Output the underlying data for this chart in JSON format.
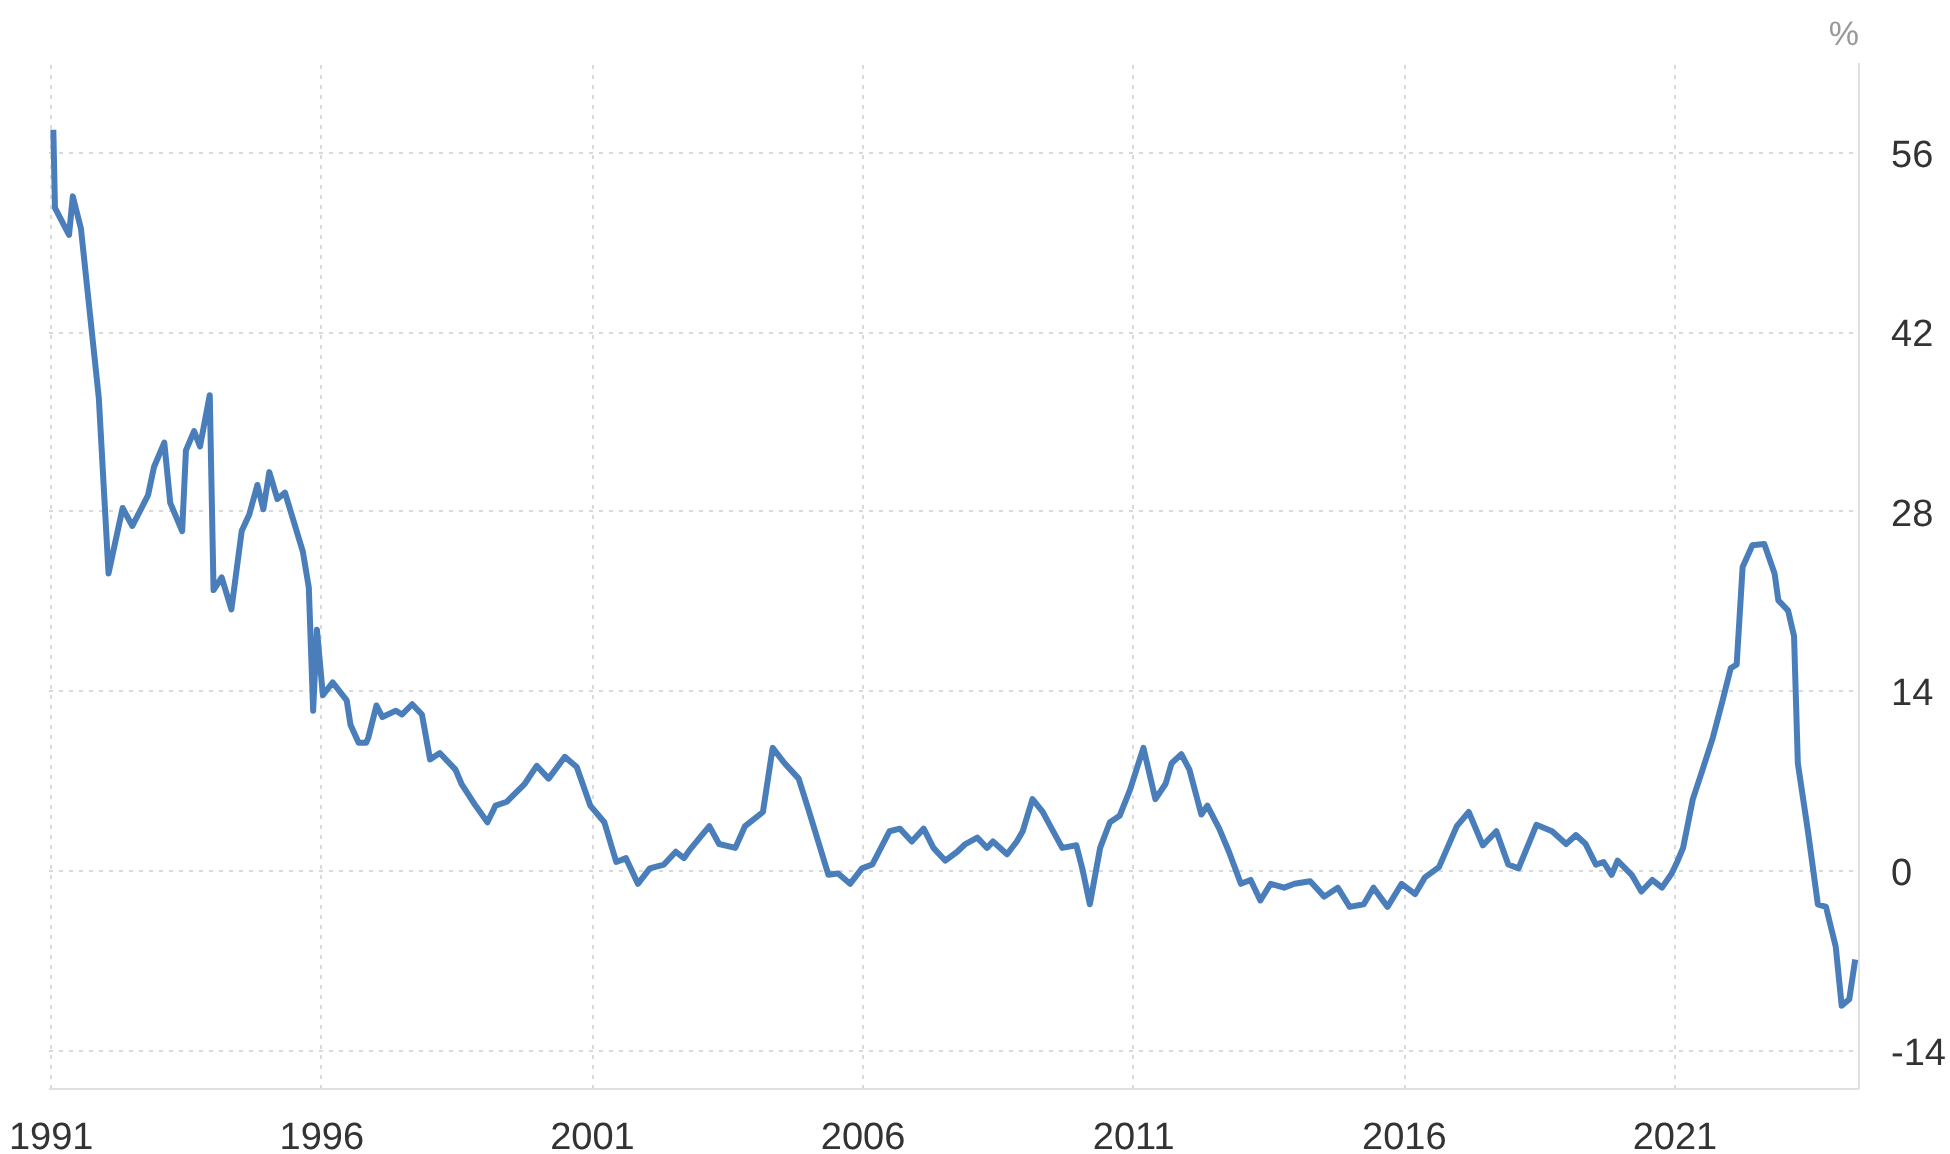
{
  "chart_data": {
    "type": "line",
    "ylabel": "%",
    "xlim": [
      1990.96,
      2024.4
    ],
    "ylim": [
      -17,
      63
    ],
    "xticks": [
      1991,
      1996,
      2001,
      2006,
      2011,
      2016,
      2021
    ],
    "yticks": [
      -14,
      0,
      14,
      28,
      42,
      56
    ],
    "grid": true,
    "marker": "none",
    "line_style": "solid",
    "x": [
      1991.04,
      1991.07,
      1991.33,
      1991.4,
      1991.55,
      1991.88,
      1992.06,
      1992.32,
      1992.5,
      1992.79,
      1992.9,
      1993.09,
      1993.2,
      1993.42,
      1993.49,
      1993.64,
      1993.75,
      1993.93,
      1994.0,
      1994.15,
      1994.33,
      1994.52,
      1994.66,
      1994.81,
      1994.92,
      1995.03,
      1995.18,
      1995.32,
      1995.65,
      1995.76,
      1995.84,
      1995.91,
      1996.02,
      1996.2,
      1996.46,
      1996.53,
      1996.68,
      1996.82,
      1996.86,
      1997.01,
      1997.12,
      1997.37,
      1997.48,
      1997.67,
      1997.85,
      1998.0,
      1998.18,
      1998.47,
      1998.58,
      1998.84,
      1999.06,
      1999.21,
      1999.42,
      1999.75,
      1999.97,
      2000.19,
      2000.49,
      2000.71,
      2000.96,
      2001.22,
      2001.44,
      2001.62,
      2001.84,
      2002.06,
      2002.32,
      2002.54,
      2002.69,
      2002.79,
      2003.16,
      2003.34,
      2003.64,
      2003.82,
      2004.15,
      2004.33,
      2004.55,
      2004.81,
      2004.99,
      2005.36,
      2005.54,
      2005.76,
      2005.98,
      2006.17,
      2006.49,
      2006.68,
      2006.9,
      2007.12,
      2007.3,
      2007.52,
      2007.74,
      2007.89,
      2008.11,
      2008.29,
      2008.4,
      2008.66,
      2008.84,
      2008.95,
      2009.13,
      2009.32,
      2009.46,
      2009.68,
      2009.94,
      2010.05,
      2010.19,
      2010.38,
      2010.56,
      2010.74,
      2010.93,
      2011.18,
      2011.4,
      2011.59,
      2011.7,
      2011.88,
      2012.03,
      2012.25,
      2012.36,
      2012.58,
      2012.76,
      2012.98,
      2013.16,
      2013.34,
      2013.53,
      2013.78,
      2013.97,
      2014.26,
      2014.52,
      2014.77,
      2014.99,
      2015.25,
      2015.43,
      2015.69,
      2015.95,
      2016.2,
      2016.38,
      2016.64,
      2016.97,
      2017.19,
      2017.45,
      2017.7,
      2017.92,
      2018.11,
      2018.44,
      2018.73,
      2018.99,
      2019.17,
      2019.35,
      2019.54,
      2019.68,
      2019.83,
      2019.94,
      2020.2,
      2020.38,
      2020.58,
      2020.76,
      2020.94,
      2021.04,
      2021.15,
      2021.33,
      2021.51,
      2021.7,
      2021.88,
      2022.03,
      2022.14,
      2022.25,
      2022.43,
      2022.65,
      2022.84,
      2022.91,
      2023.09,
      2023.2,
      2023.27,
      2023.46,
      2023.64,
      2023.79,
      2023.97,
      2024.08,
      2024.22,
      2024.33
    ],
    "series": [
      {
        "color": "#4a7ebb",
        "values": [
          57.8,
          51.7,
          49.6,
          52.6,
          50.1,
          36.9,
          23.2,
          28.3,
          26.9,
          29.3,
          31.5,
          33.4,
          28.7,
          26.5,
          32.8,
          34.3,
          33.1,
          37.1,
          21.9,
          22.9,
          20.4,
          26.5,
          27.8,
          30.1,
          28.2,
          31.1,
          29.0,
          29.5,
          24.9,
          22.1,
          12.5,
          18.8,
          13.7,
          14.7,
          13.3,
          11.4,
          10.0,
          10.0,
          10.4,
          12.9,
          12.0,
          12.5,
          12.2,
          13.0,
          12.2,
          8.7,
          9.2,
          7.9,
          6.8,
          5.1,
          3.8,
          5.1,
          5.4,
          6.8,
          8.2,
          7.2,
          8.9,
          8.1,
          5.1,
          3.8,
          0.7,
          1.0,
          -1.0,
          0.2,
          0.5,
          1.5,
          1.0,
          1.6,
          3.5,
          2.1,
          1.8,
          3.5,
          4.6,
          9.6,
          8.4,
          7.2,
          4.8,
          -0.3,
          -0.2,
          -1.0,
          0.2,
          0.5,
          3.1,
          3.3,
          2.3,
          3.3,
          1.8,
          0.8,
          1.5,
          2.1,
          2.6,
          1.8,
          2.3,
          1.3,
          2.3,
          3.1,
          5.6,
          4.6,
          3.5,
          1.8,
          2.0,
          0.2,
          -2.6,
          1.8,
          3.8,
          4.3,
          6.3,
          9.6,
          5.6,
          6.8,
          8.4,
          9.1,
          7.9,
          4.4,
          5.1,
          3.3,
          1.5,
          -1.0,
          -0.7,
          -2.3,
          -1.0,
          -1.3,
          -1.0,
          -0.8,
          -2.0,
          -1.3,
          -2.8,
          -2.6,
          -1.3,
          -2.8,
          -1.0,
          -1.8,
          -0.5,
          0.3,
          3.5,
          4.6,
          2.0,
          3.1,
          0.5,
          0.2,
          3.6,
          3.1,
          2.1,
          2.8,
          2.1,
          0.5,
          0.7,
          -0.3,
          0.8,
          -0.3,
          -1.6,
          -0.7,
          -1.3,
          -0.2,
          0.7,
          1.8,
          5.6,
          7.9,
          10.4,
          13.3,
          15.8,
          16.1,
          23.7,
          25.4,
          25.5,
          23.2,
          21.1,
          20.3,
          18.3,
          8.4,
          3.0,
          -2.6,
          -2.8,
          -5.9,
          -10.5,
          -10.0,
          -6.9
        ]
      }
    ]
  }
}
